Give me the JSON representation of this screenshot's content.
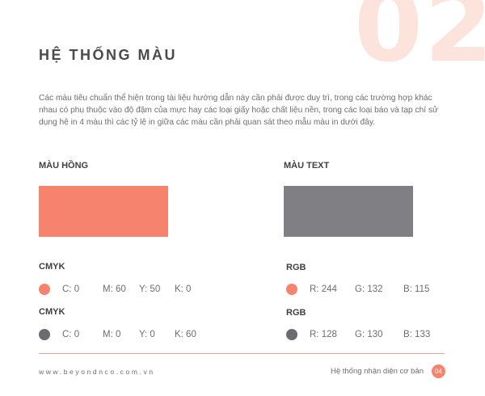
{
  "big_number": "02",
  "title": "HỆ THỐNG MÀU",
  "intro": "Các màu tiêu chuẩn thể hiện trong tài liệu hướng dẫn này cần phải được duy trì, trong các trường hợp khác nhau có phụ thuộc vào độ đậm của mực hay các loại giấy hoặc chất liệu nền, trong các loại báo và tạp chí sử dụng hệ in 4 màu thì các tỷ lệ in giữa các màu cần phải quan sát theo mẫu màu in dưới đây.",
  "swatches": [
    {
      "label": "MÀU HỒNG",
      "color": "#f5836e"
    },
    {
      "label": "MÀU TEXT",
      "color": "#808084"
    }
  ],
  "colors": {
    "pink": "#f5836e",
    "gray": "#6b6b70"
  },
  "cmyk": [
    {
      "label": "CMYK",
      "c": "C: 0",
      "m": "M: 60",
      "y": "Y: 50",
      "k": "K: 0"
    },
    {
      "label": "CMYK",
      "c": "C: 0",
      "m": "M: 0",
      "y": "Y: 0",
      "k": "K: 60"
    }
  ],
  "rgb": [
    {
      "label": "RGB",
      "r": "R: 244",
      "g": "G: 132",
      "b": "B: 115"
    },
    {
      "label": "RGB",
      "r": "R: 128",
      "g": "G: 130",
      "b": "B: 133"
    }
  ],
  "footer": {
    "website": "www.beyondnco.com.vn",
    "text": "Hệ thống nhận diện cơ bản",
    "page": "04"
  }
}
